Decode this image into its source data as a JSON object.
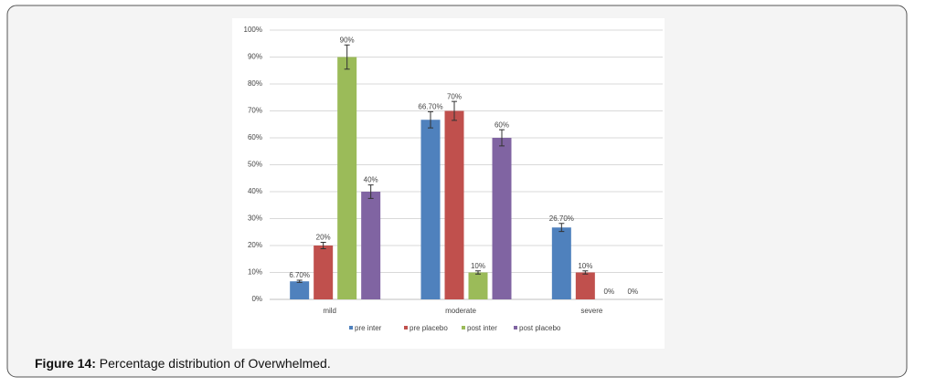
{
  "chart_data": {
    "type": "bar",
    "categories": [
      "mild",
      "moderate",
      "severe"
    ],
    "series": [
      {
        "name": "pre inter",
        "color": "#4f81bd",
        "values": [
          6.7,
          66.7,
          26.7
        ],
        "value_labels": [
          "6.70%",
          "66.70%",
          "26.70%"
        ],
        "errors": [
          0.4,
          3,
          1.5
        ]
      },
      {
        "name": "pre placebo",
        "color": "#c0504d",
        "values": [
          20,
          70,
          10
        ],
        "value_labels": [
          "20%",
          "70%",
          "10%"
        ],
        "errors": [
          1.2,
          3.5,
          0.6
        ]
      },
      {
        "name": "post inter",
        "color": "#9bbb59",
        "values": [
          90,
          10,
          0
        ],
        "value_labels": [
          "90%",
          "10%",
          "0%"
        ],
        "errors": [
          4.5,
          0.6,
          null
        ]
      },
      {
        "name": "post placebo",
        "color": "#8064a2",
        "values": [
          40,
          60,
          0
        ],
        "value_labels": [
          "40%",
          "60%",
          "0%"
        ],
        "errors": [
          2.5,
          3,
          null
        ]
      }
    ],
    "ylim": [
      0,
      100
    ],
    "yticks": [
      {
        "value": 0,
        "label": "0%"
      },
      {
        "value": 10,
        "label": "10%"
      },
      {
        "value": 20,
        "label": "20%"
      },
      {
        "value": 30,
        "label": "30%"
      },
      {
        "value": 40,
        "label": "40%"
      },
      {
        "value": 50,
        "label": "50%"
      },
      {
        "value": 60,
        "label": "60%"
      },
      {
        "value": 70,
        "label": "70%"
      },
      {
        "value": 80,
        "label": "80%"
      },
      {
        "value": 90,
        "label": "90%"
      },
      {
        "value": 100,
        "label": "100%"
      }
    ],
    "grid": true,
    "legend": "bottom"
  },
  "caption": {
    "label": "Figure 14:",
    "text": "Percentage distribution of Overwhelmed."
  }
}
